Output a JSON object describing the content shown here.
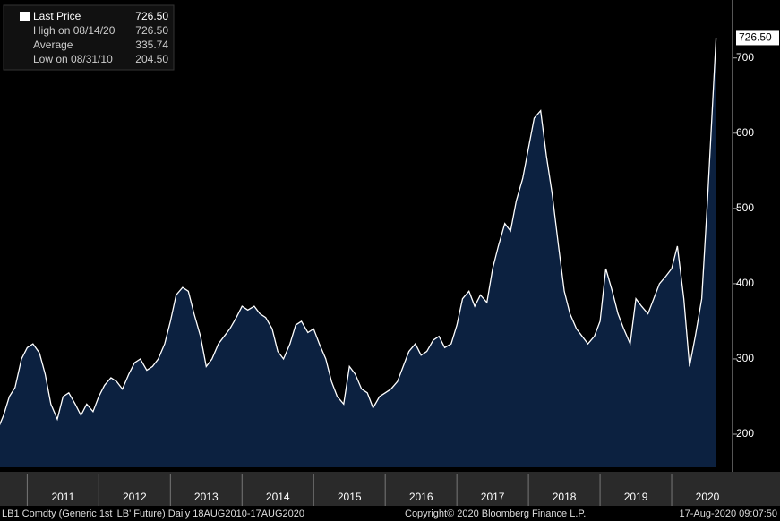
{
  "chart_data": {
    "type": "area",
    "legend": [
      {
        "label": "Last Price",
        "value": "726.50"
      },
      {
        "label": "High on 08/14/20",
        "value": "726.50"
      },
      {
        "label": "Average",
        "value": "335.74"
      },
      {
        "label": "Low on 08/31/10",
        "value": "204.50"
      }
    ],
    "last_label": "726.50",
    "footer": [
      "LB1 Comdty (Generic 1st 'LB' Future)  Daily 18AUG2010-17AUG2020",
      "Copyright© 2020 Bloomberg Finance L.P.",
      "17-Aug-2020 09:07:50"
    ],
    "series": [
      {
        "name": "Last Price",
        "color": "#ffffff",
        "fill": "#0c2140",
        "x": [
          2010.58,
          2010.67,
          2010.75,
          2010.83,
          2010.92,
          2011,
          2011.08,
          2011.17,
          2011.25,
          2011.33,
          2011.42,
          2011.5,
          2011.58,
          2011.67,
          2011.75,
          2011.83,
          2011.92,
          2012,
          2012.08,
          2012.17,
          2012.25,
          2012.33,
          2012.42,
          2012.5,
          2012.58,
          2012.67,
          2012.75,
          2012.83,
          2012.92,
          2013,
          2013.08,
          2013.17,
          2013.25,
          2013.33,
          2013.42,
          2013.5,
          2013.58,
          2013.67,
          2013.75,
          2013.83,
          2013.92,
          2014,
          2014.08,
          2014.17,
          2014.25,
          2014.33,
          2014.42,
          2014.5,
          2014.58,
          2014.67,
          2014.75,
          2014.83,
          2014.92,
          2015,
          2015.08,
          2015.17,
          2015.25,
          2015.33,
          2015.42,
          2015.5,
          2015.58,
          2015.67,
          2015.75,
          2015.83,
          2015.92,
          2016,
          2016.08,
          2016.17,
          2016.25,
          2016.33,
          2016.42,
          2016.5,
          2016.58,
          2016.67,
          2016.75,
          2016.83,
          2016.92,
          2017,
          2017.08,
          2017.17,
          2017.25,
          2017.33,
          2017.42,
          2017.5,
          2017.58,
          2017.67,
          2017.75,
          2017.83,
          2017.92,
          2018,
          2018.08,
          2018.17,
          2018.25,
          2018.33,
          2018.42,
          2018.5,
          2018.58,
          2018.67,
          2018.75,
          2018.83,
          2018.92,
          2019,
          2019.08,
          2019.17,
          2019.25,
          2019.33,
          2019.42,
          2019.5,
          2019.58,
          2019.67,
          2019.75,
          2019.83,
          2019.92,
          2020,
          2020.08,
          2020.17,
          2020.25,
          2020.33,
          2020.42,
          2020.5,
          2020.62
        ],
        "values": [
          204.5,
          225,
          250,
          262,
          300,
          315,
          320,
          308,
          280,
          240,
          220,
          250,
          255,
          240,
          225,
          240,
          230,
          250,
          265,
          275,
          270,
          260,
          280,
          295,
          300,
          285,
          290,
          300,
          320,
          350,
          385,
          395,
          390,
          360,
          330,
          290,
          300,
          320,
          330,
          340,
          355,
          370,
          365,
          370,
          360,
          355,
          340,
          310,
          300,
          320,
          345,
          350,
          335,
          340,
          320,
          300,
          270,
          250,
          240,
          290,
          280,
          260,
          255,
          235,
          250,
          255,
          260,
          270,
          290,
          310,
          320,
          305,
          310,
          325,
          330,
          315,
          320,
          345,
          380,
          390,
          370,
          385,
          375,
          420,
          450,
          480,
          470,
          510,
          540,
          580,
          620,
          630,
          570,
          520,
          450,
          390,
          360,
          340,
          330,
          320,
          330,
          350,
          420,
          390,
          360,
          340,
          320,
          380,
          370,
          360,
          380,
          400,
          410,
          420,
          450,
          380,
          290,
          330,
          380,
          510,
          726.5
        ]
      }
    ],
    "xlim": [
      2010.62,
      2020.85
    ],
    "xticks": [
      {
        "value": 2011,
        "label": "2011"
      },
      {
        "value": 2012,
        "label": "2012"
      },
      {
        "value": 2013,
        "label": "2013"
      },
      {
        "value": 2014,
        "label": "2014"
      },
      {
        "value": 2015,
        "label": "2015"
      },
      {
        "value": 2016,
        "label": "2016"
      },
      {
        "value": 2017,
        "label": "2017"
      },
      {
        "value": 2018,
        "label": "2018"
      },
      {
        "value": 2019,
        "label": "2019"
      },
      {
        "value": 2020,
        "label": "2020"
      }
    ],
    "ylim": [
      156,
      777
    ],
    "yticks": [
      200,
      300,
      400,
      500,
      600,
      700
    ]
  }
}
